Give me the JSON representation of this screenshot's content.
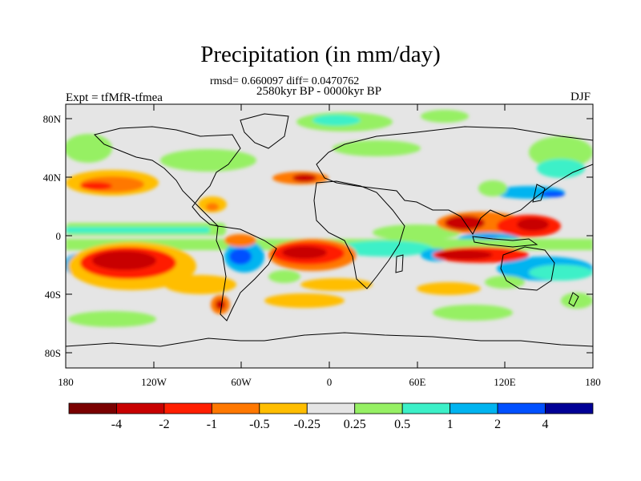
{
  "title": "Precipitation (in mm/day)",
  "stats_line": "rmsd= 0.660097 diff= 0.0470762",
  "period": "2580kyr BP - 0000kyr BP",
  "experiment": "Expt = tfMfR-tfmea",
  "season": "DJF",
  "map": {
    "projection": "equirectangular",
    "lon_range": [
      -180,
      180
    ],
    "lat_range": [
      -90,
      90
    ],
    "y_ticks": [
      "80N",
      "40N",
      "0",
      "40S",
      "80S"
    ],
    "x_ticks": [
      "180",
      "120W",
      "60W",
      "0",
      "60E",
      "120E",
      "180"
    ],
    "background_color": "#e5e5e5",
    "coastline_color": "#000000"
  },
  "colorbar": {
    "colors": [
      "#7a0000",
      "#c80000",
      "#ff1e00",
      "#ff7800",
      "#ffbe00",
      "#e5e5e5",
      "#96f064",
      "#3cf0c8",
      "#00b4f0",
      "#0050ff",
      "#000096"
    ],
    "labels": [
      "-4",
      "-2",
      "-1",
      "-0.5",
      "-0.25",
      "0.25",
      "0.5",
      "1",
      "2",
      "4"
    ]
  },
  "chart_data": {
    "type": "heatmap",
    "title": "Precipitation (in mm/day)",
    "field": "precipitation difference",
    "units": "mm/day",
    "season": "DJF",
    "levels": [
      -4,
      -2,
      -1,
      -0.5,
      -0.25,
      0.25,
      0.5,
      1,
      2,
      4
    ],
    "regions": [
      {
        "lon": [
          -178,
          -120
        ],
        "lat": [
          -45,
          -5
        ],
        "level": "-4 to -2"
      },
      {
        "lon": [
          -165,
          -125
        ],
        "lat": [
          -30,
          -12
        ],
        "level": "< -4"
      },
      {
        "lon": [
          -45,
          15
        ],
        "lat": [
          -25,
          -5
        ],
        "level": "< -4"
      },
      {
        "lon": [
          82,
          150
        ],
        "lat": [
          -20,
          -8
        ],
        "level": "-4 to -2"
      },
      {
        "lon": [
          100,
          160
        ],
        "lat": [
          0,
          20
        ],
        "level": "-2 to -1"
      },
      {
        "lon": [
          -178,
          -140
        ],
        "lat": [
          20,
          48
        ],
        "level": "-1 to -0.5"
      },
      {
        "lon": [
          -70,
          -45
        ],
        "lat": [
          -25,
          -5
        ],
        "level": "2 to 4"
      },
      {
        "lon": [
          -180,
          180
        ],
        "lat": [
          -12,
          -5
        ],
        "level": "0.5 to 2"
      },
      {
        "lon": [
          110,
          145
        ],
        "lat": [
          -10,
          5
        ],
        "level": "2 to 4"
      },
      {
        "lon": [
          -175,
          -100
        ],
        "lat": [
          -55,
          -45
        ],
        "level": "0.25 to 0.5"
      }
    ]
  }
}
